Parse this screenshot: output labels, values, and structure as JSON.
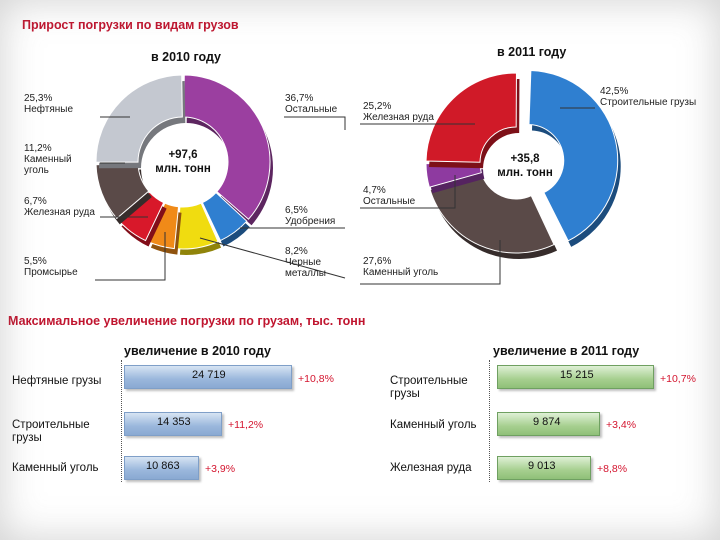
{
  "titles": {
    "top": "Прирост погрузки по видам грузов",
    "bottom": "Максимальное увеличение погрузки по грузам, тыс. тонн"
  },
  "chart_data": [
    {
      "type": "pie",
      "title": "в 2010 году",
      "center_label": [
        "+97,6",
        "млн. тонн"
      ],
      "slices": [
        {
          "label": "Остальные",
          "value_label": "36,7%",
          "value": 36.7,
          "color": "#9b3fa0"
        },
        {
          "label": "Удобрения",
          "value_label": "6,5%",
          "value": 6.5,
          "color": "#2f7fd0"
        },
        {
          "label": "Черные металлы",
          "value_label": "8,2%",
          "value": 8.2,
          "color": "#f0dc10"
        },
        {
          "label": "Промсырье",
          "value_label": "5,5%",
          "value": 5.5,
          "color": "#f08a18"
        },
        {
          "label": "Железная руда",
          "value_label": "6,7%",
          "value": 6.7,
          "color": "#d8182a"
        },
        {
          "label": "Каменный уголь",
          "value_label": "11,2%",
          "value": 11.2,
          "color": "#5a4a48"
        },
        {
          "label": "Нефтяные",
          "value_label": "25,3%",
          "value": 25.3,
          "color": "#c4c8d0"
        }
      ]
    },
    {
      "type": "pie",
      "title": "в 2011 году",
      "center_label": [
        "+35,8",
        "млн. тонн"
      ],
      "slices": [
        {
          "label": "Строительные грузы",
          "value_label": "42,5%",
          "value": 42.5,
          "color": "#2f7fd0"
        },
        {
          "label": "Каменный уголь",
          "value_label": "27,6%",
          "value": 27.6,
          "color": "#5a4a48"
        },
        {
          "label": "Остальные",
          "value_label": "4,7%",
          "value": 4.7,
          "color": "#8e3aa0"
        },
        {
          "label": "Железная руда",
          "value_label": "25,2%",
          "value": 25.2,
          "color": "#d01a28"
        }
      ]
    },
    {
      "type": "bar",
      "title": "увеличение в 2010 году",
      "categories": [
        "Нефтяные грузы",
        "Строительные грузы",
        "Каменный уголь"
      ],
      "values": [
        24719,
        14353,
        10863
      ],
      "value_labels": [
        "24 719",
        "14 353",
        "10 863"
      ],
      "growth_labels": [
        "+10,8%",
        "+11,2%",
        "+3,9%"
      ],
      "color": "#9ab7dc"
    },
    {
      "type": "bar",
      "title": "увеличение в 2011 году",
      "categories": [
        "Строительные грузы",
        "Каменный уголь",
        "Железная руда"
      ],
      "values": [
        15215,
        9874,
        9013
      ],
      "value_labels": [
        "15 215",
        "9 874",
        "9 013"
      ],
      "growth_labels": [
        "+10,7%",
        "+3,4%",
        "+8,8%"
      ],
      "color": "#a6cf8f"
    }
  ]
}
